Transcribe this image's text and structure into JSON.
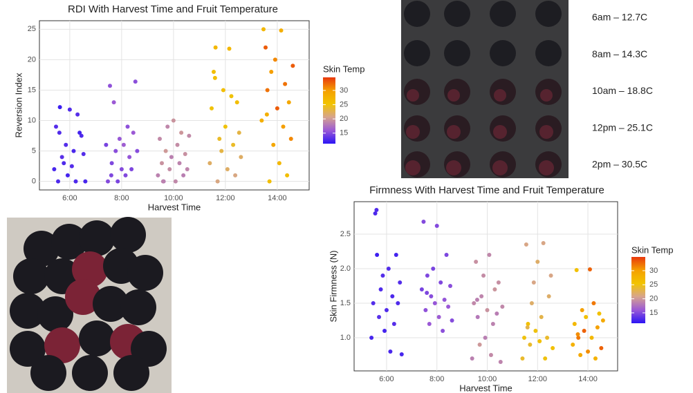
{
  "chart_data": [
    {
      "type": "scatter",
      "title": "RDI With Harvest Time and Fruit Temperature",
      "x_label": "Harvest Time",
      "y_label": "Reversion Index",
      "xlim": [
        4.83,
        15.23
      ],
      "ylim": [
        -1.4,
        26.4
      ],
      "xticks": [
        {
          "value": 6,
          "label": "6:00"
        },
        {
          "value": 8,
          "label": "8:00"
        },
        {
          "value": 10,
          "label": "10:00"
        },
        {
          "value": 12,
          "label": "12:00"
        },
        {
          "value": 14,
          "label": "14:00"
        }
      ],
      "yticks": [
        0,
        5,
        10,
        15,
        20,
        25
      ],
      "grid": true,
      "colorbar_title": "Skin Temp",
      "clim": [
        11.3,
        34.6
      ],
      "cticks": [
        15,
        20,
        25,
        30
      ],
      "colormap": [
        "#2b14f5",
        "#9b59d6",
        "#d6a48e",
        "#f2c400",
        "#f5a000",
        "#e8380d"
      ],
      "series": [
        {
          "x": [
            5.4,
            5.47,
            5.55,
            5.62,
            5.7,
            5.77,
            5.85,
            5.92,
            6,
            6.08,
            6.15,
            6.23,
            6.3,
            6.38,
            6.45,
            6.53,
            6.6,
            5.6
          ],
          "values": [
            2,
            9,
            0,
            12.2,
            4,
            3,
            6,
            1,
            11.8,
            2.5,
            5,
            0,
            11,
            8,
            7.5,
            4.5,
            0,
            8
          ],
          "temp": [
            12.5,
            13,
            12.7,
            12,
            13.2,
            12.8,
            13,
            12.4,
            12.9,
            13,
            12.6,
            12.7,
            13.1,
            12.3,
            12.8,
            13,
            12.5,
            12.9
          ]
        },
        {
          "x": [
            7.4,
            7.47,
            7.55,
            7.62,
            7.7,
            7.77,
            7.85,
            7.92,
            8,
            8.08,
            8.15,
            8.23,
            8.3,
            8.38,
            8.45,
            8.53,
            8.6,
            7.6
          ],
          "values": [
            6,
            0,
            15.7,
            3,
            13,
            5,
            0,
            7,
            2,
            6,
            1,
            9,
            4,
            2,
            8,
            16.4,
            5,
            1
          ],
          "temp": [
            14.5,
            15,
            15.5,
            14.8,
            16,
            15.2,
            14.6,
            15.8,
            15,
            16.2,
            14.9,
            15.4,
            15.7,
            14.7,
            16,
            15.3,
            15.1,
            14.8
          ]
        },
        {
          "x": [
            9.4,
            9.47,
            9.55,
            9.62,
            9.7,
            9.77,
            9.85,
            9.92,
            10,
            10.08,
            10.15,
            10.23,
            10.3,
            10.38,
            10.45,
            10.53,
            10.6,
            9.6
          ],
          "values": [
            1,
            7,
            3,
            0,
            5,
            9,
            2,
            4,
            10,
            0,
            6,
            3,
            8,
            1,
            4.5,
            2,
            7.5,
            0
          ],
          "temp": [
            18.5,
            19,
            19.5,
            18,
            20,
            18.8,
            19.2,
            18.4,
            19.6,
            18.9,
            19.1,
            18.6,
            19.8,
            18.3,
            19.4,
            18.7,
            19,
            18.5
          ]
        },
        {
          "x": [
            11.4,
            11.47,
            11.55,
            11.62,
            11.7,
            11.77,
            11.85,
            11.92,
            12,
            12.08,
            12.15,
            12.23,
            12.3,
            12.38,
            12.45,
            12.53,
            12.6,
            11.6
          ],
          "values": [
            3,
            12,
            18,
            22,
            0,
            7,
            5,
            15,
            9,
            2,
            21.8,
            14,
            6,
            1,
            13,
            8,
            4,
            17
          ],
          "temp": [
            22,
            25,
            26,
            27,
            21,
            24,
            23,
            26,
            25,
            22,
            27,
            25,
            24,
            21,
            26,
            23,
            22,
            26
          ]
        },
        {
          "x": [
            13.4,
            13.47,
            13.55,
            13.62,
            13.7,
            13.77,
            13.85,
            13.92,
            14,
            14.08,
            14.15,
            14.23,
            14.3,
            14.38,
            14.45,
            14.53,
            14.6,
            13.6
          ],
          "values": [
            10,
            25,
            22,
            15,
            0,
            18,
            6,
            20,
            12,
            3,
            24.8,
            9,
            16,
            1,
            13,
            7,
            19,
            11
          ],
          "temp": [
            28,
            27,
            33,
            32,
            26,
            30,
            29,
            31,
            33,
            27,
            28,
            30,
            32,
            26,
            29,
            31,
            33,
            28
          ]
        }
      ]
    },
    {
      "type": "scatter",
      "title": "Firmness With Harvest Time and Fruit Temperature",
      "x_label": "Harvest Time",
      "y_label": "Skin Firmness (N)",
      "xlim": [
        4.71,
        15.18
      ],
      "ylim": [
        0.52,
        2.97
      ],
      "xticks": [
        {
          "value": 6,
          "label": "6:00"
        },
        {
          "value": 8,
          "label": "8:00"
        },
        {
          "value": 10,
          "label": "10:00"
        },
        {
          "value": 12,
          "label": "12:00"
        },
        {
          "value": 14,
          "label": "14:00"
        }
      ],
      "yticks": [
        {
          "value": 1,
          "label": "1.0"
        },
        1.5,
        {
          "value": 2,
          "label": "2.0"
        },
        2.5
      ],
      "grid": true,
      "colorbar_title": "Skin Temp",
      "clim": [
        11.3,
        34.9
      ],
      "cticks": [
        15,
        20,
        25,
        30
      ],
      "colormap": [
        "#2b14f5",
        "#9b59d6",
        "#d6a48e",
        "#f2c400",
        "#f5a000",
        "#e8380d"
      ],
      "series": [
        {
          "x": [
            5.4,
            5.47,
            5.55,
            5.62,
            5.7,
            5.77,
            5.85,
            5.92,
            6,
            6.08,
            6.15,
            6.23,
            6.3,
            6.38,
            6.45,
            6.53,
            6.6,
            5.6
          ],
          "values": [
            1.0,
            1.5,
            2.8,
            2.2,
            1.3,
            1.7,
            1.9,
            1.1,
            1.4,
            2.0,
            0.8,
            1.6,
            1.2,
            2.2,
            1.5,
            1.8,
            0.76,
            2.85
          ],
          "temp": [
            12.5,
            13,
            12.7,
            12,
            13.2,
            12.8,
            13,
            12.4,
            12.9,
            13,
            12.6,
            12.7,
            13.1,
            12.3,
            12.8,
            13,
            12.5,
            12.9
          ]
        },
        {
          "x": [
            7.4,
            7.47,
            7.55,
            7.62,
            7.7,
            7.77,
            7.85,
            7.92,
            8,
            8.08,
            8.15,
            8.23,
            8.3,
            8.38,
            8.45,
            8.53,
            8.6,
            7.6
          ],
          "values": [
            1.7,
            2.68,
            1.4,
            1.9,
            1.2,
            1.6,
            2.0,
            1.5,
            2.62,
            1.3,
            1.8,
            1.1,
            1.55,
            2.2,
            1.45,
            1.75,
            1.25,
            1.65
          ],
          "temp": [
            14.5,
            15,
            15.5,
            14.8,
            16,
            15.2,
            14.6,
            15.8,
            15,
            16.2,
            14.9,
            15.4,
            15.7,
            14.7,
            16,
            15.3,
            15.1,
            14.8
          ]
        },
        {
          "x": [
            9.4,
            9.47,
            9.55,
            9.62,
            9.7,
            9.77,
            9.85,
            9.92,
            10,
            10.08,
            10.15,
            10.23,
            10.3,
            10.38,
            10.45,
            10.53,
            10.6,
            9.6
          ],
          "values": [
            0.7,
            1.5,
            2.1,
            1.3,
            0.9,
            1.6,
            1.9,
            1.0,
            1.4,
            2.2,
            0.75,
            1.2,
            1.7,
            1.35,
            1.8,
            0.65,
            1.45,
            1.55
          ],
          "temp": [
            18.5,
            19,
            19.5,
            18,
            20,
            18.8,
            19.2,
            18.4,
            19.6,
            18.9,
            19.1,
            18.6,
            19.8,
            18.3,
            19.4,
            18.7,
            19,
            18.5
          ]
        },
        {
          "x": [
            11.4,
            11.47,
            11.55,
            11.62,
            11.7,
            11.77,
            11.85,
            11.92,
            12,
            12.08,
            12.15,
            12.23,
            12.3,
            12.38,
            12.45,
            12.53,
            12.6,
            11.6
          ],
          "values": [
            0.7,
            1.0,
            2.35,
            1.2,
            0.9,
            1.5,
            1.8,
            1.1,
            2.1,
            0.95,
            1.3,
            2.37,
            0.7,
            1.0,
            1.6,
            1.9,
            0.85,
            1.15
          ],
          "temp": [
            24,
            25,
            21,
            26,
            24,
            22,
            21,
            25,
            22,
            26,
            23,
            21,
            25,
            24,
            22,
            21,
            26,
            23
          ]
        },
        {
          "x": [
            13.4,
            13.47,
            13.55,
            13.62,
            13.7,
            13.77,
            13.85,
            13.92,
            14,
            14.08,
            14.15,
            14.23,
            14.3,
            14.38,
            14.45,
            14.53,
            14.6,
            13.6
          ],
          "values": [
            0.9,
            1.2,
            1.98,
            1.0,
            0.75,
            1.4,
            1.1,
            1.3,
            0.8,
            1.99,
            1.0,
            1.5,
            0.7,
            1.15,
            1.35,
            0.85,
            1.25,
            1.05
          ],
          "temp": [
            28,
            27,
            26,
            32,
            29,
            30,
            33,
            26,
            31,
            33,
            27,
            32,
            28,
            30,
            26,
            33,
            29,
            31
          ]
        }
      ]
    }
  ],
  "photo_labels": [
    "6am – 12.7C",
    "8am – 14.3C",
    "10am – 18.8C",
    "12pm – 25.1C",
    "2pm – 30.5C"
  ]
}
